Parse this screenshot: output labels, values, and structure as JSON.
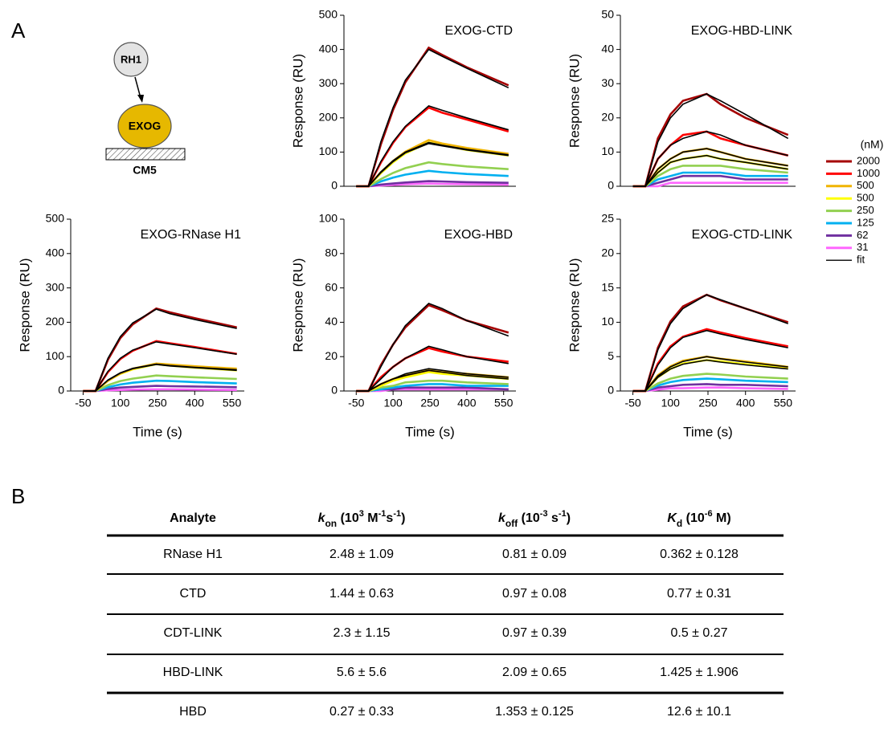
{
  "panel_labels": [
    "A",
    "B"
  ],
  "diagram": {
    "top": "RH1",
    "middle": "EXOG",
    "bottom": "CM5"
  },
  "legend": {
    "title": "(nM)",
    "items": [
      {
        "name": "2000",
        "color": "#a50000"
      },
      {
        "name": "1000",
        "color": "#ff0000"
      },
      {
        "name": "500",
        "color": "#f0b400"
      },
      {
        "name": "500",
        "color": "#ffff00"
      },
      {
        "name": "250",
        "color": "#92d050"
      },
      {
        "name": "125",
        "color": "#00b0f0"
      },
      {
        "name": "62",
        "color": "#7030a0"
      },
      {
        "name": "31",
        "color": "#ff66ff"
      },
      {
        "name": "fit",
        "color": "#000000"
      }
    ]
  },
  "chart_data": [
    {
      "type": "line",
      "title": "EXOG-RNase H1",
      "xlabel": "Time (s)",
      "ylabel": "Response (RU)",
      "x": [
        -50,
        0,
        50,
        100,
        150,
        245,
        300,
        400,
        570
      ],
      "xlim": [
        -100,
        600
      ],
      "xticks": [
        -50,
        100,
        250,
        400,
        550
      ],
      "ylim": [
        0,
        500
      ],
      "yticks": [
        0,
        100,
        200,
        300,
        400,
        500
      ],
      "series": [
        {
          "color": "#a50000",
          "values": [
            0,
            0,
            91,
            154,
            194,
            240,
            229,
            212,
            185
          ],
          "fit": [
            0,
            0,
            95,
            158,
            198,
            238,
            225,
            208,
            182
          ]
        },
        {
          "color": "#ff0000",
          "values": [
            0,
            0,
            55,
            93,
            117,
            145,
            139,
            128,
            108
          ],
          "fit": [
            0,
            0,
            57,
            95,
            119,
            143,
            137,
            126,
            107
          ]
        },
        {
          "color": "#f0b400",
          "values": [
            0,
            0,
            30,
            51,
            65,
            80,
            77,
            72,
            65
          ],
          "fit": [
            0,
            0,
            32,
            53,
            66,
            78,
            74,
            69,
            62
          ]
        },
        {
          "color": "#ffff00",
          "values": [
            0,
            0,
            30,
            50,
            63,
            78,
            74,
            68,
            60
          ],
          "fit": [
            0,
            0,
            31,
            52,
            65,
            77,
            73,
            68,
            60
          ]
        },
        {
          "color": "#92d050",
          "values": [
            0,
            0,
            17,
            29,
            36,
            45,
            43,
            40,
            35
          ]
        },
        {
          "color": "#00b0f0",
          "values": [
            0,
            0,
            11,
            19,
            24,
            30,
            29,
            26,
            22
          ]
        },
        {
          "color": "#7030a0",
          "values": [
            0,
            0,
            6,
            10,
            12,
            15,
            14,
            13,
            11
          ]
        },
        {
          "color": "#ff66ff",
          "values": [
            0,
            0,
            2,
            3,
            4,
            5,
            5,
            4,
            3
          ]
        }
      ]
    },
    {
      "type": "line",
      "title": "EXOG-CTD",
      "ylabel": "Response (RU)",
      "x": [
        -50,
        0,
        50,
        100,
        150,
        245,
        300,
        400,
        570
      ],
      "xlim": [
        -100,
        600
      ],
      "ylim": [
        0,
        500
      ],
      "yticks": [
        0,
        100,
        200,
        300,
        400,
        500
      ],
      "series": [
        {
          "color": "#a50000",
          "values": [
            0,
            0,
            122,
            223,
            304,
            405,
            384,
            348,
            295
          ],
          "fit": [
            0,
            0,
            130,
            230,
            310,
            400,
            380,
            345,
            288
          ]
        },
        {
          "color": "#ff0000",
          "values": [
            0,
            0,
            69,
            127,
            173,
            230,
            215,
            195,
            160
          ],
          "fit": [
            0,
            0,
            72,
            130,
            175,
            235,
            222,
            200,
            165
          ]
        },
        {
          "color": "#f0b400",
          "values": [
            0,
            0,
            41,
            74,
            101,
            135,
            125,
            112,
            95
          ],
          "fit": [
            0,
            0,
            42,
            75,
            100,
            128,
            120,
            108,
            92
          ]
        },
        {
          "color": "#ffff00",
          "values": [
            0,
            0,
            38,
            70,
            96,
            128,
            120,
            106,
            90
          ],
          "fit": [
            0,
            0,
            40,
            72,
            98,
            125,
            118,
            106,
            90
          ]
        },
        {
          "color": "#92d050",
          "values": [
            0,
            0,
            21,
            39,
            53,
            70,
            65,
            58,
            50
          ]
        },
        {
          "color": "#00b0f0",
          "values": [
            0,
            0,
            14,
            25,
            34,
            45,
            41,
            36,
            30
          ]
        },
        {
          "color": "#7030a0",
          "values": [
            0,
            0,
            5,
            8,
            11,
            15,
            14,
            12,
            10
          ]
        },
        {
          "color": "#ff66ff",
          "values": [
            0,
            0,
            2,
            4,
            6,
            8,
            7,
            6,
            5
          ]
        }
      ]
    },
    {
      "type": "line",
      "title": "EXOG-HBD",
      "xlabel": "Time (s)",
      "ylabel": "Response (RU)",
      "x": [
        -50,
        0,
        50,
        100,
        150,
        245,
        300,
        400,
        570
      ],
      "xlim": [
        -100,
        600
      ],
      "xticks": [
        -50,
        100,
        250,
        400,
        550
      ],
      "ylim": [
        0,
        100
      ],
      "yticks": [
        0,
        20,
        40,
        60,
        80,
        100
      ],
      "series": [
        {
          "color": "#a50000",
          "values": [
            0,
            0,
            15,
            27,
            37,
            50,
            47,
            41,
            34
          ],
          "fit": [
            0,
            0,
            14,
            27,
            38,
            51,
            48,
            41,
            32
          ]
        },
        {
          "color": "#ff0000",
          "values": [
            0,
            0,
            8,
            14,
            19,
            25,
            23,
            20,
            17
          ],
          "fit": [
            0,
            0,
            7,
            14,
            19,
            26,
            24,
            20,
            16
          ]
        },
        {
          "color": "#f0b400",
          "values": [
            0,
            0,
            4,
            7,
            9,
            12,
            11,
            10,
            8
          ],
          "fit": [
            0,
            0,
            4,
            7,
            10,
            13,
            12,
            10,
            8
          ]
        },
        {
          "color": "#ffff00",
          "values": [
            0,
            0,
            3,
            6,
            8,
            11,
            10,
            9,
            7
          ],
          "fit": [
            0,
            0,
            4,
            7,
            9,
            12,
            11,
            9,
            7
          ]
        },
        {
          "color": "#92d050",
          "values": [
            0,
            0,
            2,
            3,
            5,
            6,
            6,
            5,
            4
          ]
        },
        {
          "color": "#00b0f0",
          "values": [
            0,
            0,
            1,
            2,
            3,
            4,
            4,
            3,
            3
          ]
        },
        {
          "color": "#7030a0",
          "values": [
            0,
            0,
            1,
            1,
            2,
            2,
            2,
            2,
            1
          ]
        },
        {
          "color": "#ff66ff",
          "values": [
            0,
            0,
            0,
            1,
            1,
            1,
            1,
            1,
            1
          ]
        }
      ]
    },
    {
      "type": "line",
      "title": "EXOG-HBD-LINK",
      "ylabel": "Response (RU)",
      "x": [
        -50,
        0,
        50,
        100,
        150,
        245,
        300,
        400,
        570
      ],
      "xlim": [
        -100,
        600
      ],
      "ylim": [
        0,
        50
      ],
      "yticks": [
        0,
        10,
        20,
        30,
        40,
        50
      ],
      "series": [
        {
          "color": "#a50000",
          "values": [
            0,
            0,
            14,
            21,
            25,
            27,
            24,
            20,
            15
          ],
          "fit": [
            0,
            0,
            13,
            20,
            24,
            27,
            25,
            21,
            14
          ]
        },
        {
          "color": "#ff0000",
          "values": [
            0,
            0,
            8,
            12,
            15,
            16,
            14,
            12,
            9
          ],
          "fit": [
            0,
            0,
            8,
            12,
            14,
            16,
            15,
            12,
            9
          ]
        },
        {
          "color": "#f0b400",
          "values": [
            0,
            0,
            5,
            8,
            10,
            11,
            10,
            8,
            6
          ],
          "fit": [
            0,
            0,
            5,
            8,
            10,
            11,
            10,
            8,
            6
          ]
        },
        {
          "color": "#ffff00",
          "values": [
            0,
            0,
            4,
            7,
            8,
            9,
            8,
            7,
            5
          ],
          "fit": [
            0,
            0,
            4,
            7,
            8,
            9,
            8,
            7,
            5
          ]
        },
        {
          "color": "#92d050",
          "values": [
            0,
            0,
            3,
            5,
            6,
            6,
            6,
            5,
            4
          ]
        },
        {
          "color": "#00b0f0",
          "values": [
            0,
            0,
            2,
            3,
            4,
            4,
            4,
            3,
            3
          ]
        },
        {
          "color": "#7030a0",
          "values": [
            0,
            0,
            1,
            2,
            3,
            3,
            3,
            2,
            2
          ]
        },
        {
          "color": "#ff66ff",
          "values": [
            0,
            0,
            0,
            1,
            1,
            1,
            1,
            1,
            1
          ]
        }
      ]
    },
    {
      "type": "line",
      "title": "EXOG-CTD-LINK",
      "xlabel": "Time (s)",
      "ylabel": "Response (RU)",
      "x": [
        -50,
        0,
        50,
        100,
        150,
        245,
        300,
        400,
        570
      ],
      "xlim": [
        -100,
        600
      ],
      "xticks": [
        -50,
        100,
        250,
        400,
        550
      ],
      "ylim": [
        0,
        25
      ],
      "yticks": [
        0,
        5,
        10,
        15,
        20,
        25
      ],
      "series": [
        {
          "color": "#a50000",
          "values": [
            0,
            0,
            6.3,
            10.1,
            12.3,
            14,
            13.2,
            12,
            10
          ],
          "fit": [
            0,
            0,
            6,
            9.8,
            12,
            14,
            13.3,
            12,
            9.8
          ]
        },
        {
          "color": "#ff0000",
          "values": [
            0,
            0,
            4,
            6.5,
            7.9,
            9,
            8.5,
            7.7,
            6.5
          ],
          "fit": [
            0,
            0,
            3.8,
            6.3,
            7.8,
            8.8,
            8.3,
            7.5,
            6.3
          ]
        },
        {
          "color": "#f0b400",
          "values": [
            0,
            0,
            2.3,
            3.6,
            4.4,
            5,
            4.7,
            4.3,
            3.5
          ],
          "fit": [
            0,
            0,
            2.2,
            3.5,
            4.3,
            5,
            4.7,
            4.2,
            3.5
          ]
        },
        {
          "color": "#ffff00",
          "values": [
            0,
            0,
            2,
            3.2,
            4,
            4.5,
            4.3,
            3.9,
            3.3
          ],
          "fit": [
            0,
            0,
            2,
            3.2,
            3.9,
            4.5,
            4.2,
            3.8,
            3.2
          ]
        },
        {
          "color": "#92d050",
          "values": [
            0,
            0,
            1.1,
            1.8,
            2.2,
            2.5,
            2.4,
            2.1,
            1.8
          ]
        },
        {
          "color": "#00b0f0",
          "values": [
            0,
            0,
            0.8,
            1.3,
            1.6,
            1.8,
            1.7,
            1.5,
            1.3
          ]
        },
        {
          "color": "#7030a0",
          "values": [
            0,
            0,
            0.5,
            0.7,
            0.9,
            1,
            0.9,
            0.9,
            0.7
          ]
        },
        {
          "color": "#ff66ff",
          "values": [
            0,
            0,
            0.2,
            0.4,
            0.4,
            0.5,
            0.5,
            0.4,
            0.3
          ]
        }
      ]
    }
  ],
  "table": {
    "header": [
      [
        {
          "text": "Analyte"
        }
      ],
      [
        {
          "text": "k",
          "style": "italic"
        },
        {
          "text": "on",
          "style": "sub"
        },
        {
          "text": " (10"
        },
        {
          "text": "3",
          "style": "sup"
        },
        {
          "text": " M"
        },
        {
          "text": "-1",
          "style": "sup"
        },
        {
          "text": "s"
        },
        {
          "text": "-1",
          "style": "sup"
        },
        {
          "text": ")"
        }
      ],
      [
        {
          "text": "k",
          "style": "italic"
        },
        {
          "text": "off",
          "style": "sub"
        },
        {
          "text": " (10"
        },
        {
          "text": "-3",
          "style": "sup"
        },
        {
          "text": " s"
        },
        {
          "text": "-1",
          "style": "sup"
        },
        {
          "text": ")"
        }
      ],
      [
        {
          "text": "K",
          "style": "italic"
        },
        {
          "text": "d",
          "style": "sub"
        },
        {
          "text": " (10"
        },
        {
          "text": "-6",
          "style": "sup"
        },
        {
          "text": " M)"
        }
      ]
    ],
    "rows": [
      [
        "RNase H1",
        "2.48 ± 1.09",
        "0.81 ± 0.09",
        "0.362 ± 0.128"
      ],
      [
        "CTD",
        "1.44 ± 0.63",
        "0.97 ± 0.08",
        "0.77 ± 0.31"
      ],
      [
        "CDT-LINK",
        "2.3 ± 1.15",
        "0.97 ± 0.39",
        "0.5 ± 0.27"
      ],
      [
        "HBD-LINK",
        "5.6 ± 5.6",
        "2.09 ± 0.65",
        "1.425 ± 1.906"
      ],
      [
        "HBD",
        "0.27 ± 0.33",
        "1.353 ± 0.125",
        "12.6 ± 10.1"
      ]
    ]
  }
}
